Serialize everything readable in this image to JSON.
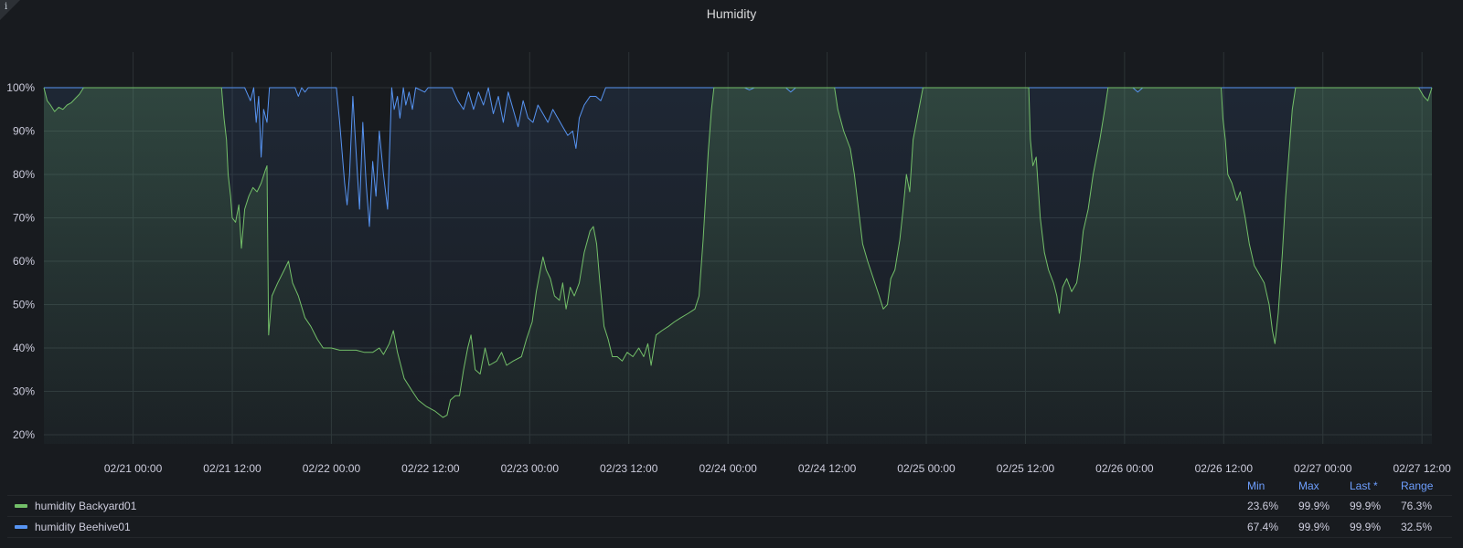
{
  "panel": {
    "title": "Humidity",
    "info_glyph": "i"
  },
  "colors": {
    "background": "#181b1f",
    "grid": "#2c3235",
    "series1": "#73bf69",
    "series2": "#5794f2"
  },
  "chart_data": {
    "type": "line",
    "title": "Humidity",
    "xlabel": "",
    "ylabel": "",
    "ylim": [
      18,
      100
    ],
    "y_ticks": [
      "20%",
      "30%",
      "40%",
      "50%",
      "60%",
      "70%",
      "80%",
      "90%",
      "100%"
    ],
    "y_tick_values": [
      20,
      30,
      40,
      50,
      60,
      70,
      80,
      90,
      100
    ],
    "x_ticks": [
      "02/21 00:00",
      "02/21 12:00",
      "02/22 00:00",
      "02/22 12:00",
      "02/23 00:00",
      "02/23 12:00",
      "02/24 00:00",
      "02/24 12:00",
      "02/25 00:00",
      "02/25 12:00",
      "02/26 00:00",
      "02/26 12:00",
      "02/27 00:00",
      "02/27 12:00"
    ],
    "x_tick_hours": [
      24,
      36,
      48,
      60,
      72,
      84,
      96,
      108,
      120,
      132,
      144,
      156,
      168,
      180
    ],
    "xlim_hours": [
      13.2,
      181.2
    ],
    "grid": true,
    "legend_placement": "bottom",
    "series": [
      {
        "name": "humidity Backyard01",
        "color": "#73bf69",
        "points": [
          [
            13.2,
            100
          ],
          [
            13.6,
            97
          ],
          [
            14,
            96
          ],
          [
            14.5,
            94.5
          ],
          [
            15,
            95.5
          ],
          [
            15.5,
            95
          ],
          [
            16,
            96
          ],
          [
            16.5,
            96.5
          ],
          [
            17,
            97.5
          ],
          [
            17.5,
            98.5
          ],
          [
            18,
            100
          ],
          [
            34.7,
            100
          ],
          [
            35,
            93
          ],
          [
            35.3,
            88
          ],
          [
            35.5,
            80
          ],
          [
            35.8,
            75
          ],
          [
            36,
            70
          ],
          [
            36.4,
            69
          ],
          [
            36.8,
            73
          ],
          [
            37.1,
            63
          ],
          [
            37.5,
            72
          ],
          [
            38,
            75
          ],
          [
            38.5,
            77
          ],
          [
            39,
            76
          ],
          [
            39.5,
            78
          ],
          [
            40,
            81
          ],
          [
            40.2,
            82
          ],
          [
            40.4,
            43
          ],
          [
            40.8,
            52
          ],
          [
            41.5,
            55
          ],
          [
            42.3,
            58
          ],
          [
            42.8,
            60
          ],
          [
            43.3,
            55
          ],
          [
            44,
            52
          ],
          [
            44.8,
            47
          ],
          [
            45.5,
            45
          ],
          [
            46.3,
            42
          ],
          [
            47,
            40
          ],
          [
            48,
            40
          ],
          [
            49,
            39.5
          ],
          [
            50,
            39.5
          ],
          [
            51,
            39.5
          ],
          [
            52,
            39
          ],
          [
            53,
            39
          ],
          [
            53.8,
            40
          ],
          [
            54.3,
            38.5
          ],
          [
            55,
            41
          ],
          [
            55.5,
            44
          ],
          [
            56,
            39
          ],
          [
            56.8,
            33
          ],
          [
            57.8,
            30
          ],
          [
            58.5,
            28
          ],
          [
            59.5,
            26.5
          ],
          [
            60.5,
            25.5
          ],
          [
            61.5,
            24
          ],
          [
            62,
            24.5
          ],
          [
            62.4,
            28
          ],
          [
            63,
            29
          ],
          [
            63.5,
            29
          ],
          [
            64,
            35
          ],
          [
            64.5,
            40
          ],
          [
            64.9,
            43
          ],
          [
            65.4,
            35
          ],
          [
            66,
            34
          ],
          [
            66.6,
            40
          ],
          [
            67.1,
            36
          ],
          [
            68,
            37
          ],
          [
            68.6,
            39
          ],
          [
            69.2,
            36
          ],
          [
            70,
            37
          ],
          [
            71,
            38
          ],
          [
            71.6,
            42
          ],
          [
            72.3,
            46
          ],
          [
            72.8,
            53
          ],
          [
            73.3,
            58
          ],
          [
            73.6,
            61
          ],
          [
            74,
            58
          ],
          [
            74.5,
            56
          ],
          [
            75,
            52
          ],
          [
            75.6,
            51
          ],
          [
            76,
            55
          ],
          [
            76.4,
            49
          ],
          [
            76.9,
            54
          ],
          [
            77.4,
            52
          ],
          [
            78,
            55
          ],
          [
            78.6,
            62
          ],
          [
            79.3,
            67
          ],
          [
            79.7,
            68
          ],
          [
            80.1,
            64
          ],
          [
            80.5,
            55
          ],
          [
            81,
            45
          ],
          [
            81.5,
            42
          ],
          [
            82,
            38
          ],
          [
            82.6,
            38
          ],
          [
            83.2,
            37
          ],
          [
            83.8,
            39
          ],
          [
            84.5,
            38
          ],
          [
            85.2,
            40
          ],
          [
            85.8,
            38
          ],
          [
            86.3,
            41
          ],
          [
            86.7,
            36
          ],
          [
            87.3,
            43
          ],
          [
            88,
            44
          ],
          [
            88.8,
            45
          ],
          [
            89.5,
            46
          ],
          [
            90.3,
            47
          ],
          [
            91.2,
            48
          ],
          [
            92,
            49
          ],
          [
            92.5,
            52
          ],
          [
            93,
            65
          ],
          [
            93.3,
            75
          ],
          [
            93.6,
            85
          ],
          [
            94,
            95
          ],
          [
            94.3,
            100
          ],
          [
            108.9,
            100
          ],
          [
            109.3,
            95
          ],
          [
            110,
            90
          ],
          [
            110.8,
            86
          ],
          [
            111.3,
            80
          ],
          [
            111.8,
            72
          ],
          [
            112.3,
            64
          ],
          [
            112.9,
            60
          ],
          [
            113.6,
            56
          ],
          [
            114.3,
            52
          ],
          [
            114.8,
            49
          ],
          [
            115.3,
            50
          ],
          [
            115.7,
            56
          ],
          [
            116.2,
            58
          ],
          [
            116.8,
            65
          ],
          [
            117.2,
            72
          ],
          [
            117.6,
            80
          ],
          [
            118,
            76
          ],
          [
            118.4,
            88
          ],
          [
            119,
            94
          ],
          [
            119.6,
            100
          ],
          [
            132.4,
            100
          ],
          [
            132.6,
            88
          ],
          [
            132.9,
            82
          ],
          [
            133.3,
            84
          ],
          [
            133.8,
            70
          ],
          [
            134.3,
            62
          ],
          [
            134.8,
            58
          ],
          [
            135.4,
            55
          ],
          [
            135.8,
            52
          ],
          [
            136.1,
            48
          ],
          [
            136.5,
            54
          ],
          [
            137,
            56
          ],
          [
            137.6,
            53
          ],
          [
            138.2,
            55
          ],
          [
            138.6,
            60
          ],
          [
            139,
            67
          ],
          [
            139.6,
            72
          ],
          [
            140.2,
            80
          ],
          [
            141,
            88
          ],
          [
            141.6,
            95
          ],
          [
            142,
            100
          ],
          [
            155.7,
            100
          ],
          [
            155.9,
            93
          ],
          [
            156.2,
            88
          ],
          [
            156.5,
            80
          ],
          [
            157,
            78
          ],
          [
            157.6,
            74
          ],
          [
            158,
            76
          ],
          [
            158.6,
            70
          ],
          [
            159.1,
            64
          ],
          [
            159.7,
            59
          ],
          [
            160.3,
            57
          ],
          [
            160.9,
            55
          ],
          [
            161.5,
            50
          ],
          [
            161.9,
            44
          ],
          [
            162.2,
            41
          ],
          [
            162.6,
            48
          ],
          [
            163.1,
            62
          ],
          [
            163.5,
            75
          ],
          [
            163.9,
            85
          ],
          [
            164.3,
            95
          ],
          [
            164.7,
            100
          ],
          [
            179.6,
            100
          ],
          [
            180.2,
            98
          ],
          [
            180.7,
            97
          ],
          [
            181.2,
            100
          ]
        ]
      },
      {
        "name": "humidity Beehive01",
        "color": "#5794f2",
        "points": [
          [
            13.2,
            100
          ],
          [
            37.5,
            100
          ],
          [
            38.2,
            97
          ],
          [
            38.6,
            100
          ],
          [
            38.9,
            92
          ],
          [
            39.2,
            98
          ],
          [
            39.5,
            84
          ],
          [
            39.8,
            95
          ],
          [
            40.2,
            92
          ],
          [
            40.5,
            100
          ],
          [
            43.6,
            100
          ],
          [
            44,
            98
          ],
          [
            44.4,
            100
          ],
          [
            44.8,
            99
          ],
          [
            45.2,
            100
          ],
          [
            48.6,
            100
          ],
          [
            49,
            92
          ],
          [
            49.3,
            85
          ],
          [
            49.6,
            78
          ],
          [
            49.9,
            73
          ],
          [
            50.2,
            80
          ],
          [
            50.6,
            98
          ],
          [
            51,
            85
          ],
          [
            51.4,
            72
          ],
          [
            51.8,
            92
          ],
          [
            52.2,
            78
          ],
          [
            52.6,
            68
          ],
          [
            53,
            83
          ],
          [
            53.4,
            75
          ],
          [
            53.8,
            90
          ],
          [
            54.3,
            80
          ],
          [
            54.8,
            72
          ],
          [
            55.3,
            100
          ],
          [
            55.6,
            95
          ],
          [
            56,
            98
          ],
          [
            56.3,
            93
          ],
          [
            56.7,
            100
          ],
          [
            57,
            96
          ],
          [
            57.4,
            99
          ],
          [
            57.8,
            95
          ],
          [
            58.2,
            100
          ],
          [
            59.3,
            99
          ],
          [
            59.7,
            100
          ],
          [
            62.6,
            100
          ],
          [
            63.3,
            97
          ],
          [
            64,
            95
          ],
          [
            64.6,
            99
          ],
          [
            65.2,
            95
          ],
          [
            65.8,
            99
          ],
          [
            66.4,
            96
          ],
          [
            67,
            100
          ],
          [
            67.6,
            94
          ],
          [
            68.2,
            98
          ],
          [
            68.8,
            92
          ],
          [
            69.4,
            99
          ],
          [
            70,
            95
          ],
          [
            70.6,
            91
          ],
          [
            71.2,
            97
          ],
          [
            71.8,
            93
          ],
          [
            72.4,
            92
          ],
          [
            73,
            96
          ],
          [
            73.6,
            94
          ],
          [
            74.2,
            92
          ],
          [
            74.8,
            95
          ],
          [
            75.4,
            93
          ],
          [
            76,
            91
          ],
          [
            76.6,
            89
          ],
          [
            77.2,
            90
          ],
          [
            77.6,
            86
          ],
          [
            78,
            93
          ],
          [
            78.6,
            96
          ],
          [
            79.3,
            98
          ],
          [
            80,
            98
          ],
          [
            80.6,
            97
          ],
          [
            81.2,
            100
          ],
          [
            98,
            100
          ],
          [
            98.6,
            99.5
          ],
          [
            99.2,
            100
          ],
          [
            103,
            100
          ],
          [
            103.6,
            99
          ],
          [
            104.2,
            100
          ],
          [
            145,
            100
          ],
          [
            145.6,
            99
          ],
          [
            146.2,
            100
          ],
          [
            179.6,
            100
          ],
          [
            181.2,
            100
          ]
        ]
      }
    ]
  },
  "legend": {
    "headers": {
      "min": "Min",
      "max": "Max",
      "last": "Last *",
      "range": "Range"
    },
    "rows": [
      {
        "name": "humidity Backyard01",
        "color": "#73bf69",
        "min": "23.6%",
        "max": "99.9%",
        "last": "99.9%",
        "range": "76.3%"
      },
      {
        "name": "humidity Beehive01",
        "color": "#5794f2",
        "min": "67.4%",
        "max": "99.9%",
        "last": "99.9%",
        "range": "32.5%"
      }
    ]
  }
}
